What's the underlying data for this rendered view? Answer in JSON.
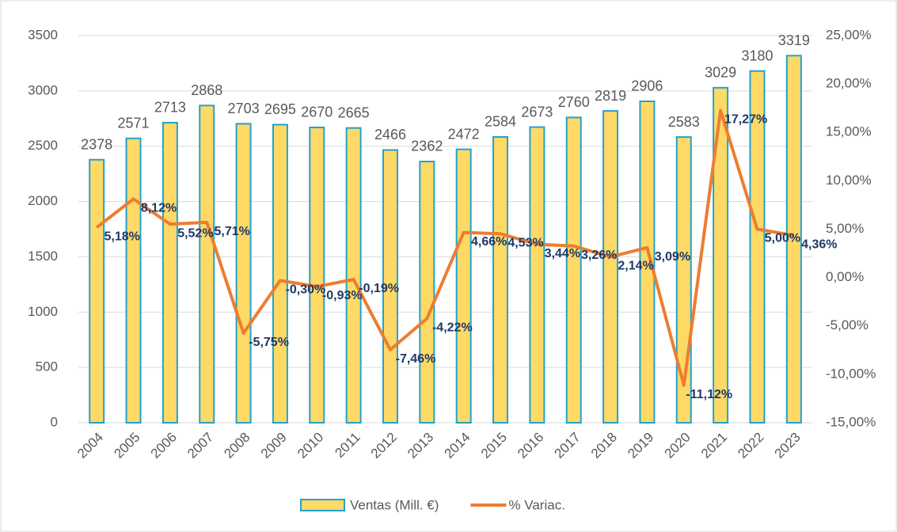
{
  "chart_data": {
    "type": "combo",
    "categories": [
      "2004",
      "2005",
      "2006",
      "2007",
      "2008",
      "2009",
      "2010",
      "2011",
      "2012",
      "2013",
      "2014",
      "2015",
      "2016",
      "2017",
      "2018",
      "2019",
      "2020",
      "2021",
      "2022",
      "2023"
    ],
    "series": [
      {
        "name": "Ventas (Mill. €)",
        "type": "bar",
        "color": "#FFD966",
        "edge_color": "#1FA3D1",
        "values": [
          2378,
          2571,
          2713,
          2868,
          2703,
          2695,
          2670,
          2665,
          2466,
          2362,
          2472,
          2584,
          2673,
          2760,
          2819,
          2906,
          2583,
          3029,
          3180,
          3319
        ]
      },
      {
        "name": "% Variac.",
        "type": "line",
        "axis": "y2",
        "color": "#ED7D31",
        "values": [
          5.18,
          8.12,
          5.52,
          5.71,
          -5.75,
          -0.3,
          -0.93,
          -0.19,
          -7.46,
          -4.22,
          4.66,
          4.53,
          3.44,
          3.26,
          2.14,
          3.09,
          -11.12,
          17.27,
          5.0,
          4.36
        ],
        "value_labels": [
          "5,18%",
          "8,12%",
          "5,52%",
          "5,71%",
          "-5,75%",
          "-0,30%",
          "-0,93%",
          "-0,19%",
          "-7,46%",
          "-4,22%",
          "4,66%",
          "4,53%",
          "3,44%",
          "3,26%",
          "2,14%",
          "3,09%",
          "-11,12%",
          "17,27%",
          "5,00%",
          "4,36%"
        ]
      }
    ],
    "ylim": [
      0,
      3500
    ],
    "yticks": [
      0,
      500,
      1000,
      1500,
      2000,
      2500,
      3000,
      3500
    ],
    "y2lim": [
      -15,
      25
    ],
    "y2ticks": [
      {
        "value": -15,
        "label": "-15,00%"
      },
      {
        "value": -10,
        "label": "-10,00%"
      },
      {
        "value": -5,
        "label": "-5,00%"
      },
      {
        "value": 0,
        "label": "0,00%"
      },
      {
        "value": 5,
        "label": "5,00%"
      },
      {
        "value": 10,
        "label": "10,00%"
      },
      {
        "value": 15,
        "label": "15,00%"
      },
      {
        "value": 20,
        "label": "20,00%"
      },
      {
        "value": 25,
        "label": "25,00%"
      }
    ],
    "grid": true,
    "legend": "bottom"
  }
}
